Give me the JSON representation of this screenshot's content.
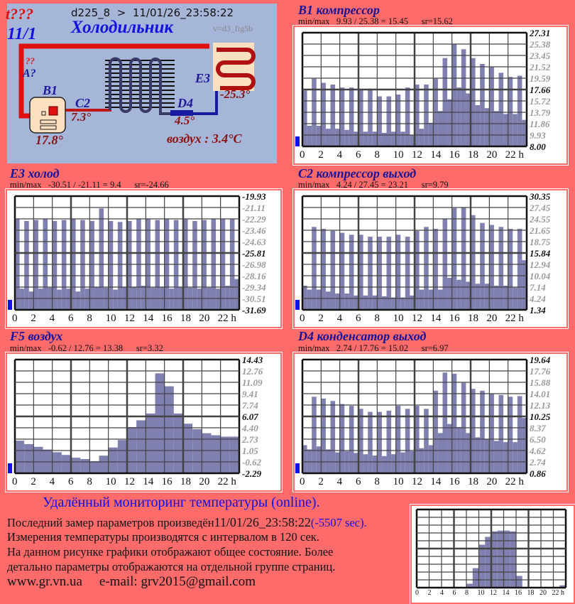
{
  "diagram": {
    "status": "t???",
    "date_short": "11/1",
    "header": "d225_8  >  11/01/26_23:58:22",
    "title": "Холодильник",
    "version": "v=d3_fig5b",
    "unknown_mark": "??",
    "a_label": "A?",
    "b1_label": "B1",
    "b1_value": "17.8°",
    "c2_label": "C2",
    "c2_value": "7.3°",
    "d4_label": "D4",
    "d4_value": "4.5°",
    "e3_label": "E3",
    "e3_value": "-25.3°",
    "air": "воздух : 3.4°C",
    "colors": {
      "hot": "#e01010",
      "cold": "#1a1a9a",
      "panel": "#a6b6d9"
    }
  },
  "chart_data": [
    {
      "type": "bar",
      "title": "B1 компрессор",
      "minmax": "min/max   9.93 / 25.38 = 15.45      sr=15.62",
      "ylim": [
        8.0,
        27.31
      ],
      "yticks": [
        "27.31",
        "25.38",
        "23.45",
        "21.52",
        "19.59",
        "17.66",
        "15.72",
        "13.79",
        "11.86",
        "9.93",
        "8.00"
      ],
      "xticks": [
        "0",
        "2",
        "4",
        "6",
        "8",
        "10",
        "12",
        "14",
        "16",
        "18",
        "20",
        "22 h"
      ],
      "x_hours_step": 0.5,
      "values": [
        17.5,
        11.5,
        19.5,
        11.5,
        18.8,
        11,
        18.5,
        11,
        18,
        10.8,
        18,
        10.5,
        17.6,
        10.5,
        17.8,
        10.5,
        16.5,
        10.3,
        16.5,
        10.5,
        16.8,
        10.5,
        18,
        9.9,
        18.5,
        11,
        18.5,
        12,
        19.5,
        14,
        23,
        16,
        25.4,
        18,
        24.5,
        17,
        23,
        15,
        22,
        14.5,
        21.5,
        14,
        20.5,
        13.5,
        19.8,
        13.5,
        20,
        12.5
      ]
    },
    {
      "type": "bar",
      "title": "E3 холод",
      "minmax": "min/max   -30.51 / -21.11 = 9.4      sr=-24.66",
      "ylim": [
        -31.69,
        -19.93
      ],
      "yticks": [
        "-19.93",
        "-21.11",
        "-22.29",
        "-23.46",
        "-24.63",
        "-25.81",
        "-26.98",
        "-28.16",
        "-29.34",
        "-30.51",
        "-31.69"
      ],
      "xticks": [
        "0",
        "2",
        "4",
        "6",
        "8",
        "10",
        "12",
        "14",
        "16",
        "18",
        "20",
        "22 h"
      ],
      "x_hours_step": 0.5,
      "values": [
        -22.3,
        -29.5,
        -22.5,
        -29.8,
        -22.4,
        -29.5,
        -22.3,
        -29.4,
        -22.5,
        -29.6,
        -22.4,
        -29.5,
        -22.3,
        -29.8,
        -22.4,
        -29.5,
        -22.5,
        -29.3,
        -21.2,
        -29.4,
        -22.5,
        -29.6,
        -22.6,
        -29.3,
        -22.5,
        -29.3,
        -22.3,
        -29.2,
        -22.3,
        -29.4,
        -22.4,
        -29.3,
        -22.3,
        -29.5,
        -22.4,
        -29.3,
        -22.3,
        -29.4,
        -22.5,
        -29.5,
        -22.4,
        -29.4,
        -22.3,
        -29.5,
        -22.3,
        -29.2,
        -22.3,
        -28.5
      ]
    },
    {
      "type": "bar",
      "title": "C2 компрессор выход",
      "minmax": "min/max   4.24 / 27.45 = 23.21      sr=9.79",
      "ylim": [
        1.34,
        30.35
      ],
      "yticks": [
        "30.35",
        "27.45",
        "24.55",
        "21.65",
        "18.75",
        "15.84",
        "12.94",
        "10.04",
        "7.14",
        "4.24",
        "1.34"
      ],
      "xticks": [
        "0",
        "2",
        "4",
        "6",
        "8",
        "10",
        "12",
        "14",
        "16",
        "18",
        "20",
        "22 h"
      ],
      "x_hours_step": 0.5,
      "values": [
        7.5,
        6.5,
        22.5,
        6.5,
        22,
        6,
        21.5,
        5.5,
        21,
        5.5,
        20.5,
        5,
        20.5,
        5,
        20,
        5,
        20,
        4.8,
        20,
        4.5,
        20.5,
        4.5,
        20,
        5,
        21.5,
        6.5,
        22.5,
        6.5,
        22,
        6.5,
        24.5,
        9.5,
        27.3,
        9,
        27.5,
        8.5,
        25.5,
        8,
        23.5,
        8,
        23,
        7.5,
        22.5,
        7.5,
        22,
        7,
        22,
        14
      ]
    },
    {
      "type": "area",
      "title": "F5 воздух",
      "minmax": "min/max   -0.62 / 12.76 = 13.38      sr=3.32",
      "ylim": [
        -2.29,
        14.43
      ],
      "yticks": [
        "14.43",
        "12.76",
        "11.09",
        "9.41",
        "7.74",
        "6.07",
        "4.40",
        "2.73",
        "1.05",
        "-0.62",
        "-2.29"
      ],
      "xticks": [
        "0",
        "2",
        "4",
        "6",
        "8",
        "10",
        "12",
        "14",
        "16",
        "18",
        "20",
        "22 h"
      ],
      "x_hours_step": 1,
      "values": [
        2.5,
        2.0,
        1.6,
        1.2,
        0.8,
        0.4,
        0.0,
        -0.2,
        -0.5,
        0.3,
        1.5,
        2.6,
        4.5,
        5.5,
        6.5,
        12.4,
        10.5,
        6.5,
        5.0,
        4.2,
        3.6,
        3.3,
        3.1,
        3.1,
        3.1
      ]
    },
    {
      "type": "bar",
      "title": "D4 конденсатор выход",
      "minmax": "min/max   2.74 / 17.76 = 15.02      sr=6.97",
      "ylim": [
        0.86,
        19.64
      ],
      "yticks": [
        "19.64",
        "17.76",
        "15.88",
        "14.01",
        "12.13",
        "10.25",
        "8.37",
        "6.50",
        "4.62",
        "2.74",
        "0.86"
      ],
      "xticks": [
        "0",
        "2",
        "4",
        "6",
        "8",
        "10",
        "12",
        "14",
        "16",
        "18",
        "20",
        "22 h"
      ],
      "x_hours_step": 0.5,
      "values": [
        5.5,
        4.8,
        13.5,
        5.3,
        13.2,
        4.8,
        12.8,
        4.3,
        12.3,
        4.5,
        12,
        4.2,
        11.5,
        4,
        11,
        3.8,
        11,
        3.7,
        11.2,
        4,
        12,
        4.3,
        11.5,
        4.5,
        12,
        5,
        11.5,
        5.5,
        14.5,
        7.5,
        17.5,
        9,
        17.3,
        8.5,
        15.8,
        7.5,
        14.8,
        6.8,
        14.5,
        6.5,
        14,
        6.2,
        13.8,
        6,
        13.5,
        6,
        13.6,
        10
      ]
    },
    {
      "type": "bar",
      "title": "",
      "xticks": [
        "0",
        "2",
        "4",
        "6",
        "8",
        "10",
        "12",
        "14",
        "16",
        "18",
        "20",
        "22 h"
      ],
      "ylim": [
        0,
        10
      ],
      "x_hours_step": 1,
      "values": [
        0,
        0,
        0,
        0,
        0,
        0,
        0,
        0,
        0.5,
        2.5,
        5.5,
        6.5,
        7.2,
        7.3,
        7.3,
        7.2,
        1.5,
        0,
        0,
        0,
        0,
        0,
        0,
        0.3
      ]
    }
  ],
  "footer": {
    "heading": "Удалённый мониторинг температуры (online).",
    "last_measure_prefix": "Последний замер параметров произведён",
    "last_measure_time": "11/01/26_23:58:22",
    "last_measure_delta": "(-5507 sec).",
    "interval": "Измерения температуры  производятся с интервалом в 120 сек.",
    "note_1": "На данном рисунке графики отображают общее состояние. Более",
    "note_2": "детально параметры отображаются на отдельной группе страниц.",
    "website": "www.gr.vn.ua",
    "email": "e-mail: grv2015@gmail.com"
  }
}
